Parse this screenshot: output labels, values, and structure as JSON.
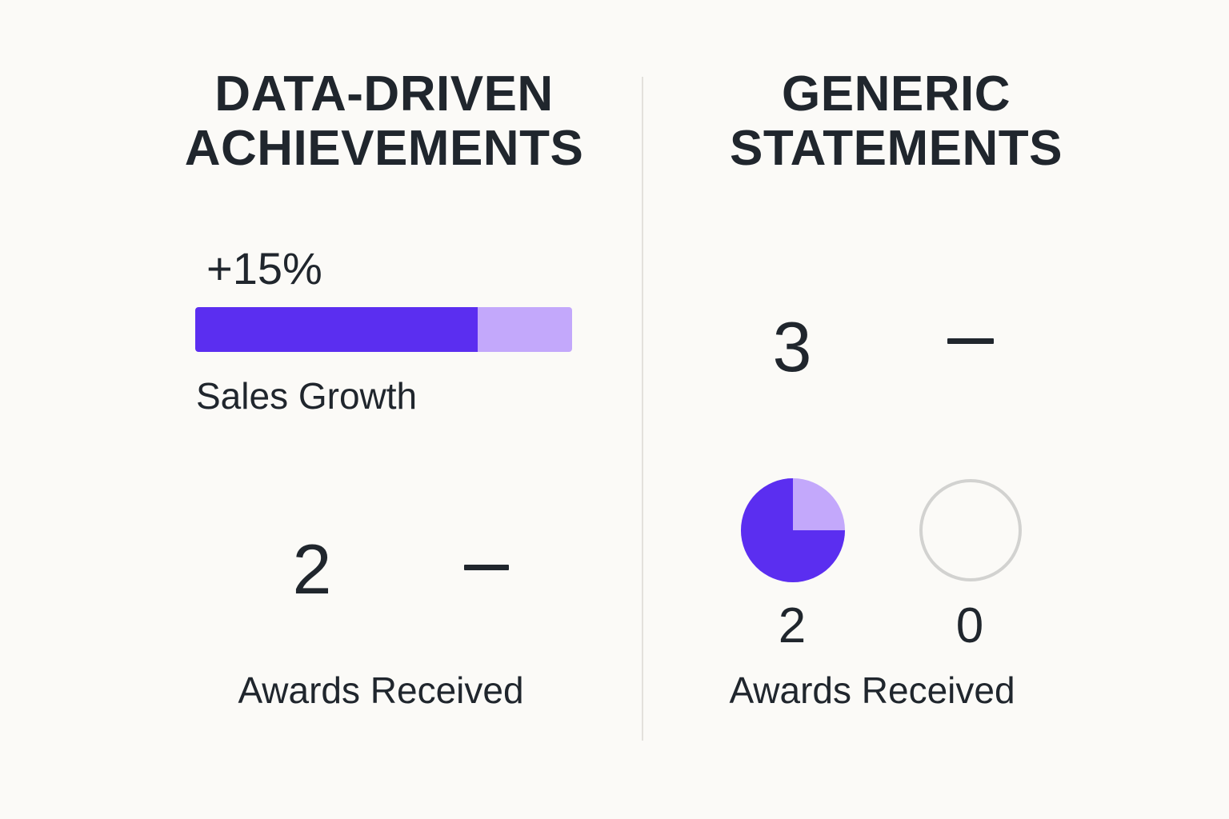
{
  "left": {
    "heading_line1": "DATA-DRIVEN",
    "heading_line2": "ACHIEVEMENTS",
    "growth_value": "+15%",
    "growth_bar_fill": 0.75,
    "growth_label": "Sales Growth",
    "awards_value": "2",
    "awards_other": "–",
    "awards_label": "Awards Received"
  },
  "right": {
    "heading_line1": "GENERIC",
    "heading_line2": "STATEMENTS",
    "count_value": "3",
    "count_other": "–",
    "pie_fraction": 0.75,
    "pie_value": "2",
    "empty_value": "0",
    "awards_label": "Awards Received"
  },
  "colors": {
    "background": "#fbfaf7",
    "accent": "#5b2ef0",
    "accent_light": "#c3a8fb",
    "text": "#20262d",
    "ring_gray": "#d2d2d0",
    "divider": "#e3e1dc"
  }
}
